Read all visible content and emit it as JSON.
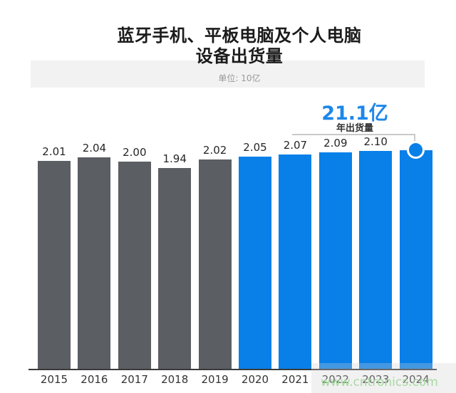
{
  "header": {
    "title_line1": "蓝牙手机、平板电脑及个人电脑",
    "title_line2": "设备出货量",
    "subtitle": "单位: 10亿"
  },
  "annotation": {
    "value": "21.1亿",
    "label": "年出货量"
  },
  "watermark": {
    "text": "www.cntronics.com"
  },
  "colors": {
    "gray_bar": "#5b5e63",
    "blue_bar": "#0880e8",
    "accent_text": "#1d87ea",
    "bracket": "#c9c9c9",
    "axis": "#3a3a3a",
    "band_bg": "#f2f2f2",
    "watermark_green": "#a9d9a3"
  },
  "chart_data": {
    "type": "bar",
    "title": "蓝牙手机、平板电脑及个人电脑设备出货量",
    "subtitle": "单位: 10亿",
    "xlabel": "",
    "ylabel": "",
    "ylim": [
      0,
      2.2
    ],
    "grid": false,
    "legend": false,
    "categories": [
      "2015",
      "2016",
      "2017",
      "2018",
      "2019",
      "2020",
      "2021",
      "2022",
      "2023",
      "2024"
    ],
    "values": [
      2.01,
      2.04,
      2.0,
      1.94,
      2.02,
      2.05,
      2.07,
      2.09,
      2.1,
      2.11
    ],
    "data_labels": [
      "2.01",
      "2.04",
      "2.00",
      "1.94",
      "2.02",
      "2.05",
      "2.07",
      "2.09",
      "2.10",
      ""
    ],
    "bar_colors": [
      "#5b5e63",
      "#5b5e63",
      "#5b5e63",
      "#5b5e63",
      "#5b5e63",
      "#0880e8",
      "#0880e8",
      "#0880e8",
      "#0880e8",
      "#0880e8"
    ],
    "highlight": {
      "category": "2024",
      "annotation_value": "21.1亿",
      "annotation_label": "年出货量",
      "marker": "circle"
    }
  }
}
